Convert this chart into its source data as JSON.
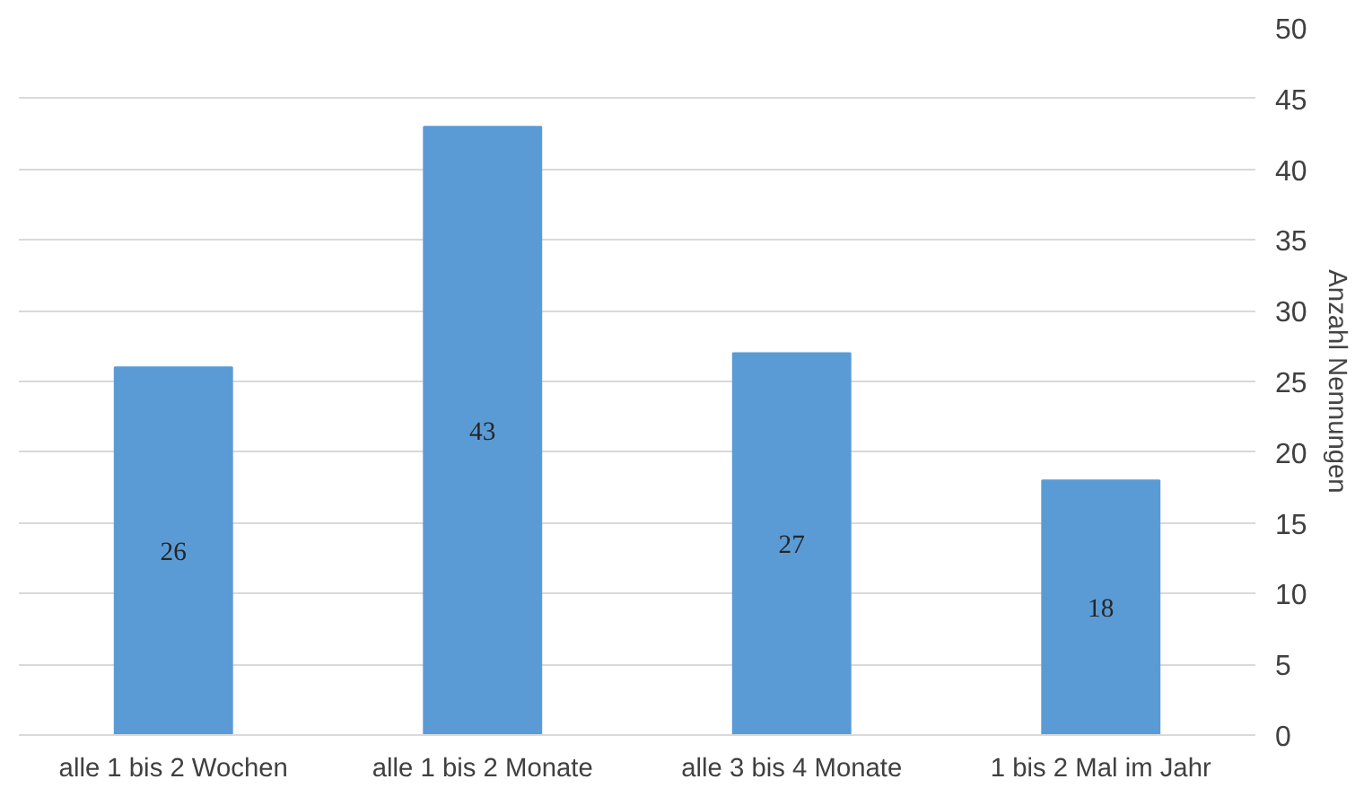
{
  "chart_data": {
    "type": "bar",
    "categories": [
      "alle 1 bis 2 Wochen",
      "alle 1 bis 2 Monate",
      "alle 3 bis 4 Monate",
      "1 bis 2 Mal im Jahr"
    ],
    "values": [
      26,
      43,
      27,
      18
    ],
    "color": "#5b9bd5",
    "ylabel": "Anzahl Nennungen",
    "ylim": [
      0,
      50
    ],
    "yticks": [
      0,
      5,
      10,
      15,
      20,
      25,
      30,
      35,
      40,
      45,
      50
    ],
    "grid": "y",
    "data_labels": true
  }
}
